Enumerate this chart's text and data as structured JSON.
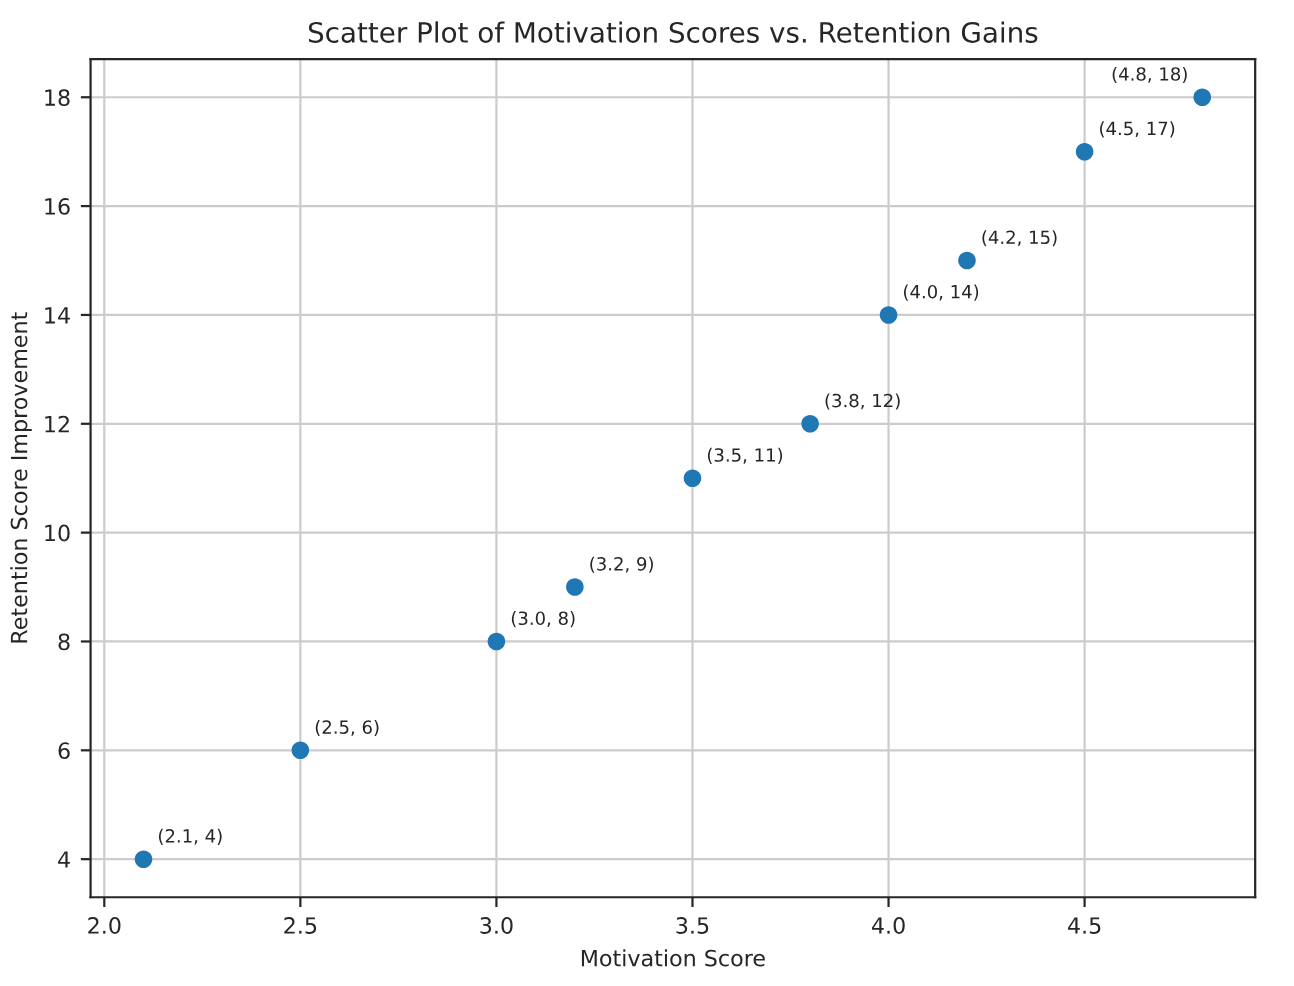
{
  "chart_data": {
    "type": "scatter",
    "title": "Scatter Plot of Motivation Scores vs. Retention Gains",
    "xlabel": "Motivation Score",
    "ylabel": "Retention Score Improvement",
    "x": [
      2.1,
      2.5,
      3.0,
      3.2,
      3.5,
      3.8,
      4.0,
      4.2,
      4.5,
      4.8
    ],
    "series": [
      {
        "color": "#1f77b4",
        "values": [
          4,
          6,
          8,
          9,
          11,
          12,
          14,
          15,
          17,
          18
        ],
        "value_labels": [
          "(2.1, 4)",
          "(2.5, 6)",
          "(3.0, 8)",
          "(3.2, 9)",
          "(3.5, 11)",
          "(3.8, 12)",
          "(4.0, 14)",
          "(4.2, 15)",
          "(4.5, 17)",
          "(4.8, 18)"
        ]
      }
    ],
    "xlim": [
      1.965,
      4.935
    ],
    "xticks": [
      {
        "value": 2.0,
        "label": "2.0"
      },
      {
        "value": 2.5,
        "label": "2.5"
      },
      {
        "value": 3.0,
        "label": "3.0"
      },
      {
        "value": 3.5,
        "label": "3.5"
      },
      {
        "value": 4.0,
        "label": "4.0"
      },
      {
        "value": 4.5,
        "label": "4.5"
      }
    ],
    "ylim": [
      3.3,
      18.7
    ],
    "yticks": [
      4,
      6,
      8,
      10,
      12,
      14,
      16,
      18
    ],
    "grid": true,
    "marker": "circle"
  }
}
